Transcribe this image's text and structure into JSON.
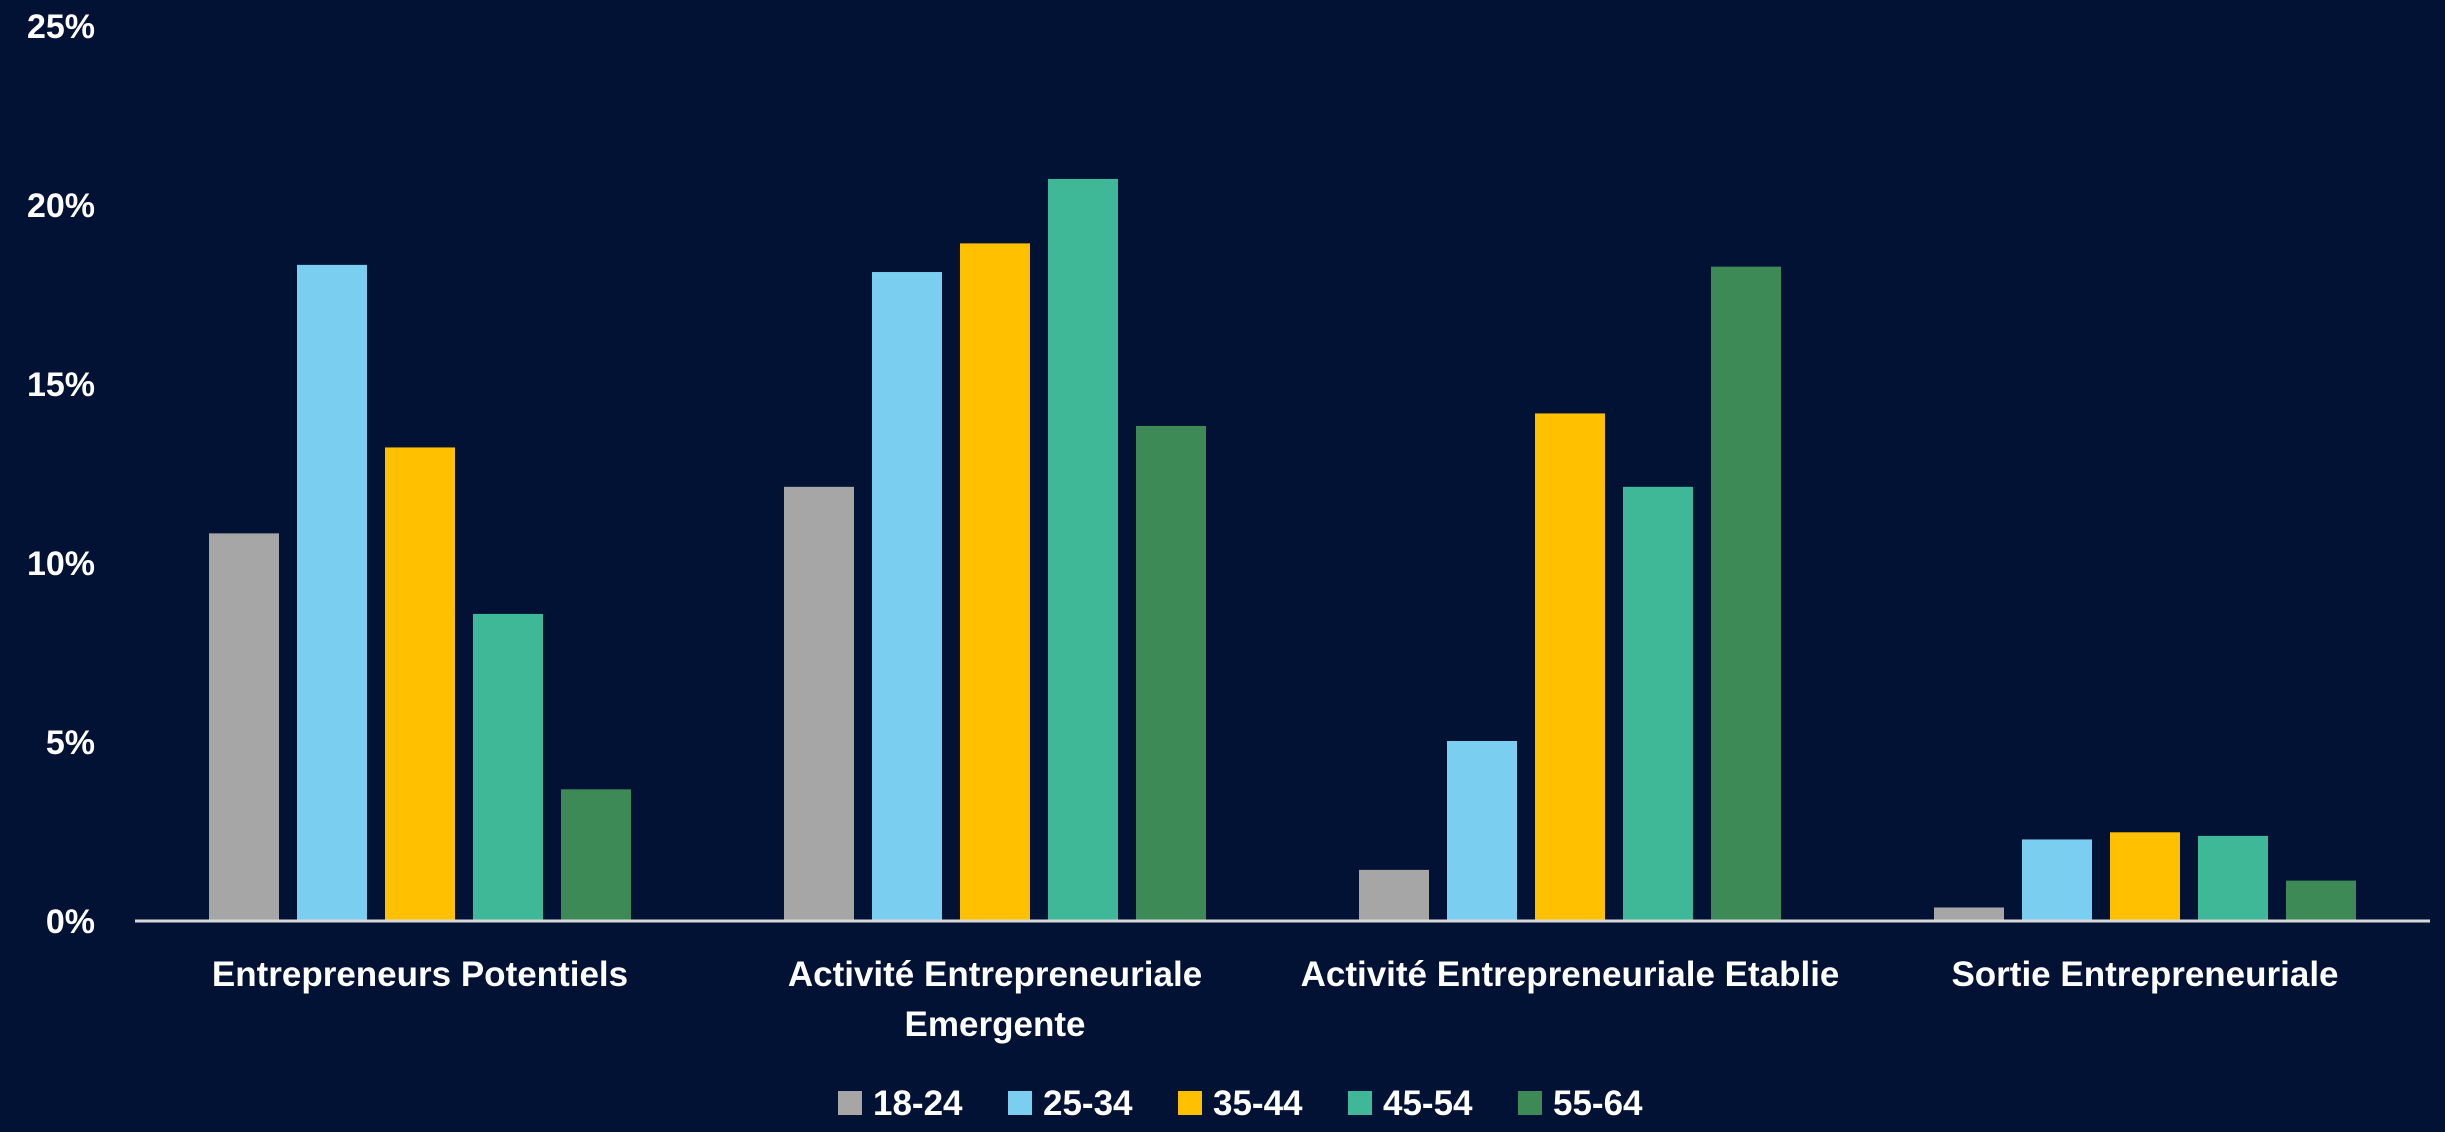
{
  "chart_data": {
    "type": "bar",
    "title": "",
    "xlabel": "",
    "ylabel": "",
    "ylim": [
      0,
      25
    ],
    "y_ticks": [
      "0%",
      "5%",
      "10%",
      "15%",
      "20%",
      "25%"
    ],
    "y_tick_values": [
      0,
      5,
      10,
      15,
      20,
      25
    ],
    "grid": false,
    "legend_position": "bottom",
    "categories": [
      [
        "Entrepreneurs Potentiels"
      ],
      [
        "Activité Entrepreneuriale",
        "Emergente"
      ],
      [
        "Activité Entrepreneuriale Etablie"
      ],
      [
        "Sortie Entrepreneuriale"
      ]
    ],
    "series": [
      {
        "name": "18-24",
        "color": "#A6A6A6",
        "values": [
          10.8,
          12.1,
          1.4,
          0.35
        ]
      },
      {
        "name": "25-34",
        "color": "#7ACEF0",
        "values": [
          18.3,
          18.1,
          5.0,
          2.25
        ]
      },
      {
        "name": "35-44",
        "color": "#FFC000",
        "values": [
          13.2,
          18.9,
          14.15,
          2.45
        ]
      },
      {
        "name": "45-54",
        "color": "#3FB897",
        "values": [
          8.55,
          20.7,
          12.1,
          2.35
        ]
      },
      {
        "name": "55-64",
        "color": "#3E8A57",
        "values": [
          3.65,
          13.8,
          18.25,
          1.1
        ]
      }
    ]
  },
  "colors": {
    "background": "#021235",
    "axis_line": "#D9D9D9",
    "text": "#FFFFFF"
  }
}
